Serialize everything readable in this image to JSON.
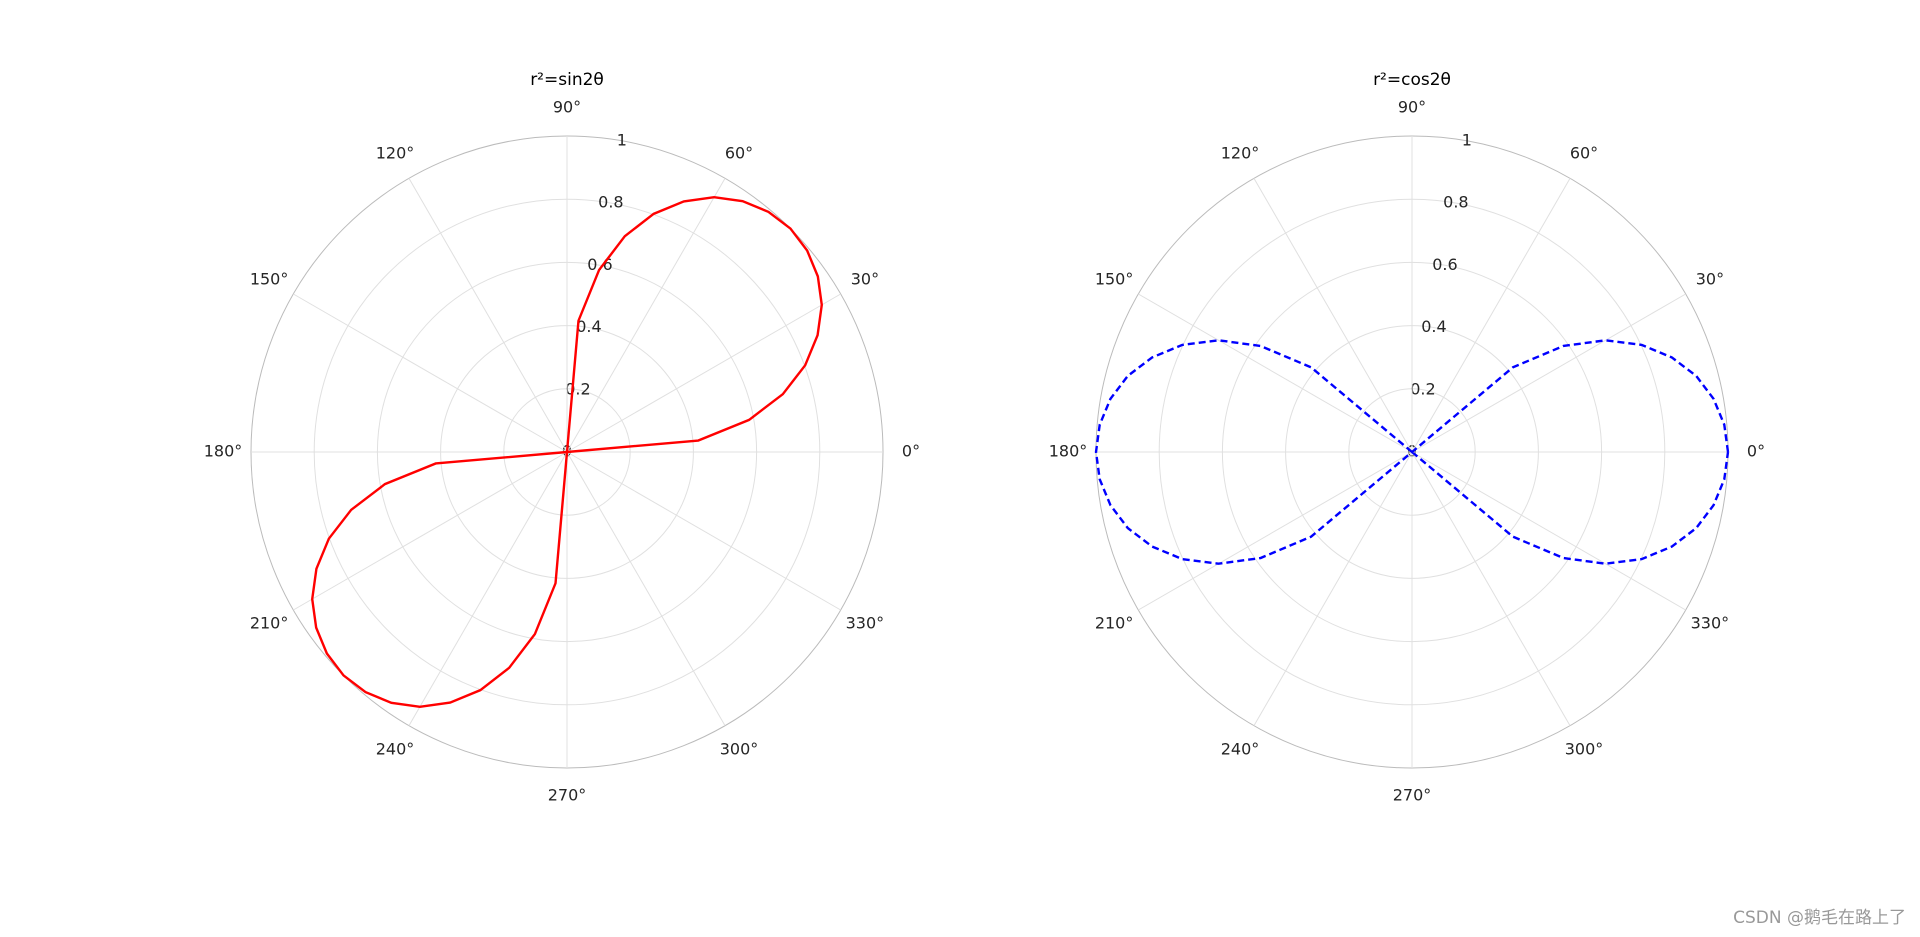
{
  "chart_data": [
    {
      "type": "polar",
      "title": "r²=sin2θ",
      "theta": [
        0,
        5,
        10,
        15,
        20,
        25,
        30,
        35,
        40,
        45,
        50,
        55,
        60,
        65,
        70,
        75,
        80,
        85,
        90,
        95,
        100,
        105,
        110,
        115,
        120,
        125,
        130,
        135,
        140,
        145,
        150,
        155,
        160,
        165,
        170,
        175,
        180,
        185,
        190,
        195,
        200,
        205,
        210,
        215,
        220,
        225,
        230,
        235,
        240,
        245,
        250,
        255,
        260,
        265,
        270,
        275,
        280,
        285,
        290,
        295,
        300,
        305,
        310,
        315,
        320,
        325,
        330,
        335,
        340,
        345,
        350,
        355,
        360
      ],
      "r": [
        0,
        0.417,
        0.585,
        0.707,
        0.802,
        0.875,
        0.931,
        0.969,
        0.992,
        1,
        0.992,
        0.969,
        0.931,
        0.875,
        0.802,
        0.707,
        0.585,
        0.417,
        0,
        null,
        null,
        null,
        null,
        null,
        null,
        null,
        null,
        null,
        null,
        null,
        null,
        null,
        null,
        null,
        null,
        null,
        0,
        0.417,
        0.585,
        0.707,
        0.802,
        0.875,
        0.931,
        0.969,
        0.992,
        1,
        0.992,
        0.969,
        0.931,
        0.875,
        0.802,
        0.707,
        0.585,
        0.417,
        0,
        null,
        null,
        null,
        null,
        null,
        null,
        null,
        null,
        null,
        null,
        null,
        null,
        null,
        null,
        null,
        null,
        null,
        0
      ],
      "color": "#ff0000",
      "linestyle": "solid",
      "rlim": [
        0,
        1
      ],
      "rticks": [
        0,
        0.2,
        0.4,
        0.6,
        0.8,
        1
      ],
      "thetaticks": [
        {
          "value": 0,
          "label": "0°"
        },
        {
          "value": 30,
          "label": "30°"
        },
        {
          "value": 60,
          "label": "60°"
        },
        {
          "value": 90,
          "label": "90°"
        },
        {
          "value": 120,
          "label": "120°"
        },
        {
          "value": 150,
          "label": "150°"
        },
        {
          "value": 180,
          "label": "180°"
        },
        {
          "value": 210,
          "label": "210°"
        },
        {
          "value": 240,
          "label": "240°"
        },
        {
          "value": 270,
          "label": "270°"
        },
        {
          "value": 300,
          "label": "300°"
        },
        {
          "value": 330,
          "label": "330°"
        }
      ],
      "grid": true
    },
    {
      "type": "polar",
      "title": "r²=cos2θ",
      "theta": [
        0,
        5,
        10,
        15,
        20,
        25,
        30,
        35,
        40,
        45,
        50,
        55,
        60,
        65,
        70,
        75,
        80,
        85,
        90,
        95,
        100,
        105,
        110,
        115,
        120,
        125,
        130,
        135,
        140,
        145,
        150,
        155,
        160,
        165,
        170,
        175,
        180,
        185,
        190,
        195,
        200,
        205,
        210,
        215,
        220,
        225,
        230,
        235,
        240,
        245,
        250,
        255,
        260,
        265,
        270,
        275,
        280,
        285,
        290,
        295,
        300,
        305,
        310,
        315,
        320,
        325,
        330,
        335,
        340,
        345,
        350,
        355,
        360
      ],
      "r": [
        1,
        0.992,
        0.969,
        0.931,
        0.875,
        0.802,
        0.707,
        0.585,
        0.417,
        0,
        null,
        null,
        null,
        null,
        null,
        null,
        null,
        null,
        null,
        null,
        null,
        null,
        null,
        null,
        null,
        null,
        null,
        0,
        0.417,
        0.585,
        0.707,
        0.802,
        0.875,
        0.931,
        0.969,
        0.992,
        1,
        0.992,
        0.969,
        0.931,
        0.875,
        0.802,
        0.707,
        0.585,
        0.417,
        0,
        null,
        null,
        null,
        null,
        null,
        null,
        null,
        null,
        null,
        null,
        null,
        null,
        null,
        null,
        null,
        null,
        null,
        0,
        0.417,
        0.585,
        0.707,
        0.802,
        0.875,
        0.931,
        0.969,
        0.992,
        1
      ],
      "color": "#0000ff",
      "linestyle": "dashed",
      "rlim": [
        0,
        1
      ],
      "rticks": [
        0,
        0.2,
        0.4,
        0.6,
        0.8,
        1
      ],
      "thetaticks": [
        {
          "value": 0,
          "label": "0°"
        },
        {
          "value": 30,
          "label": "30°"
        },
        {
          "value": 60,
          "label": "60°"
        },
        {
          "value": 90,
          "label": "90°"
        },
        {
          "value": 120,
          "label": "120°"
        },
        {
          "value": 150,
          "label": "150°"
        },
        {
          "value": 180,
          "label": "180°"
        },
        {
          "value": 210,
          "label": "210°"
        },
        {
          "value": 240,
          "label": "240°"
        },
        {
          "value": 270,
          "label": "270°"
        },
        {
          "value": 300,
          "label": "300°"
        },
        {
          "value": 330,
          "label": "330°"
        }
      ],
      "grid": true
    }
  ],
  "watermark": "CSDN @鹅毛在路上了"
}
